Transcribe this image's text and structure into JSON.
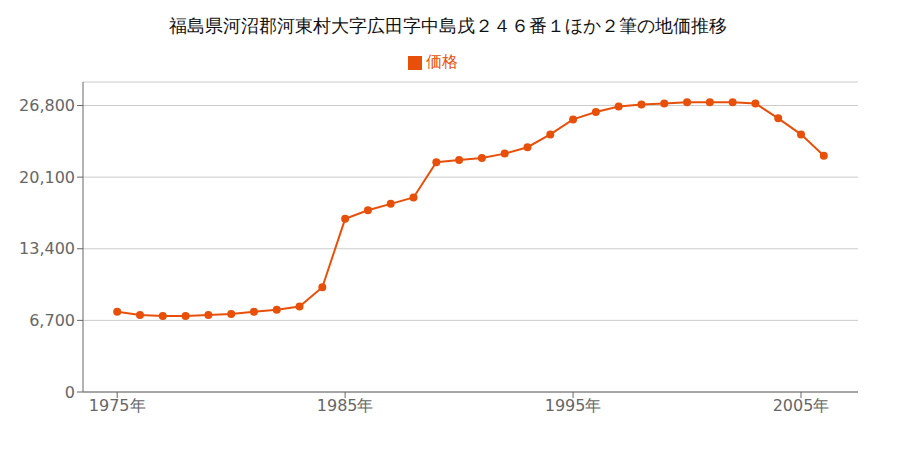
{
  "chart_data": {
    "type": "line",
    "title": "福島県河沼郡河東村大字広田字中島戌２４６番１ほか２筆の地価推移",
    "x": [
      1975,
      1976,
      1977,
      1978,
      1979,
      1980,
      1981,
      1982,
      1983,
      1984,
      1985,
      1986,
      1987,
      1988,
      1989,
      1990,
      1991,
      1992,
      1993,
      1994,
      1995,
      1996,
      1997,
      1998,
      1999,
      2000,
      2001,
      2002,
      2003,
      2004,
      2005,
      2006
    ],
    "series": [
      {
        "name": "価格",
        "color": "#e8500a",
        "marker": "circle",
        "values": [
          7500,
          7200,
          7100,
          7100,
          7200,
          7300,
          7500,
          7700,
          8000,
          9800,
          16200,
          17000,
          17600,
          18200,
          21500,
          21700,
          21900,
          22300,
          22900,
          24100,
          25500,
          26200,
          26700,
          26900,
          27000,
          27100,
          27100,
          27100,
          27000,
          25600,
          24100,
          22100
        ]
      }
    ],
    "xlim": [
      1973.5,
      2007.5
    ],
    "xticks": [
      {
        "value": 1975,
        "label": "1975年"
      },
      {
        "value": 1985,
        "label": "1985年"
      },
      {
        "value": 1995,
        "label": "1995年"
      },
      {
        "value": 2005,
        "label": "2005年"
      }
    ],
    "ylim": [
      0,
      29000
    ],
    "yticks": [
      0,
      {
        "value": 6700,
        "label": "6,700"
      },
      {
        "value": 13400,
        "label": "13,400"
      },
      {
        "value": 20100,
        "label": "20,100"
      },
      {
        "value": 26800,
        "label": "26,800"
      }
    ],
    "grid": true,
    "legend": "top"
  }
}
